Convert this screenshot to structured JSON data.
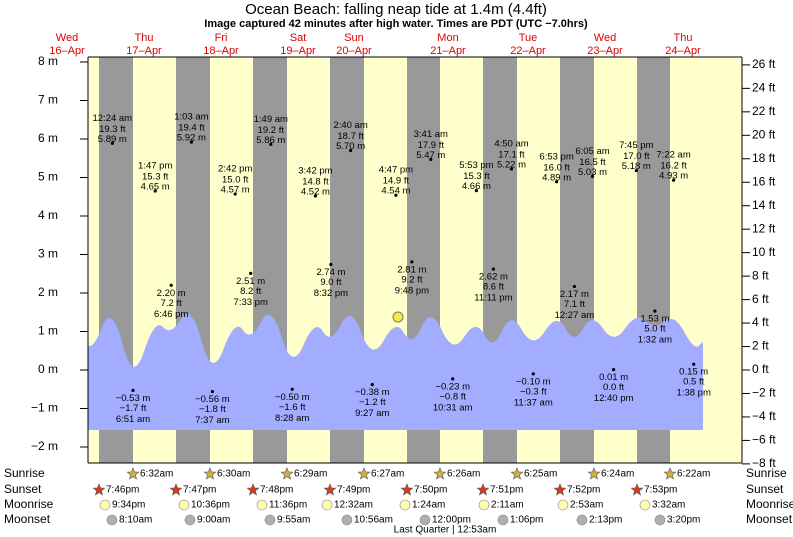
{
  "chart_data": {
    "type": "tide",
    "title": "Ocean Beach: falling  neap tide at 1.4m (4.4ft)",
    "subtitle": "Image captured 42 minutes after high water. Times are PDT (UTC −7.0hrs)",
    "days": [
      {
        "weekday": "Wed",
        "date": "16–Apr"
      },
      {
        "weekday": "Thu",
        "date": "17–Apr"
      },
      {
        "weekday": "Fri",
        "date": "18–Apr"
      },
      {
        "weekday": "Sat",
        "date": "19–Apr"
      },
      {
        "weekday": "Sun",
        "date": "20–Apr"
      },
      {
        "weekday": "Mon",
        "date": "21–Apr"
      },
      {
        "weekday": "Tue",
        "date": "22–Apr"
      },
      {
        "weekday": "Wed",
        "date": "23–Apr"
      },
      {
        "weekday": "Thu",
        "date": "24–Apr"
      }
    ],
    "ylim": [
      -2,
      8
    ],
    "yticks": [
      {
        "value": 8,
        "label": "8 m"
      },
      {
        "value": 7,
        "label": "7 m"
      },
      {
        "value": 6,
        "label": "6 m"
      },
      {
        "value": 5,
        "label": "5 m"
      },
      {
        "value": 4,
        "label": "4 m"
      },
      {
        "value": 3,
        "label": "3 m"
      },
      {
        "value": 2,
        "label": "2 m"
      },
      {
        "value": 1,
        "label": "1 m"
      },
      {
        "value": 0,
        "label": "0 m"
      },
      {
        "value": -1,
        "label": "−1 m"
      },
      {
        "value": -2,
        "label": "−2 m"
      }
    ],
    "y2ticks": [
      {
        "value": 26,
        "label": "26 ft"
      },
      {
        "value": 24,
        "label": "24 ft"
      },
      {
        "value": 22,
        "label": "22 ft"
      },
      {
        "value": 20,
        "label": "20 ft"
      },
      {
        "value": 18,
        "label": "18 ft"
      },
      {
        "value": 16,
        "label": "16 ft"
      },
      {
        "value": 14,
        "label": "14 ft"
      },
      {
        "value": 12,
        "label": "12 ft"
      },
      {
        "value": 10,
        "label": "10 ft"
      },
      {
        "value": 8,
        "label": "8 ft"
      },
      {
        "value": 6,
        "label": "6 ft"
      },
      {
        "value": 4,
        "label": "4 ft"
      },
      {
        "value": 2,
        "label": "2 ft"
      },
      {
        "value": 0,
        "label": "0 ft"
      },
      {
        "value": -2,
        "label": "−2 ft"
      },
      {
        "value": -4,
        "label": "−4 ft"
      },
      {
        "value": -6,
        "label": "−6 ft"
      },
      {
        "value": -8,
        "label": "−8 ft"
      }
    ],
    "tides": {
      "values": [
        5.89,
        -0.53,
        4.65,
        2.2,
        5.92,
        -0.56,
        4.57,
        2.51,
        5.86,
        -0.5,
        4.52,
        2.74,
        5.7,
        -0.38,
        4.54,
        2.81,
        5.47,
        -0.23,
        4.66,
        2.62,
        5.22,
        -0.1,
        4.89,
        2.17,
        5.03,
        0.01,
        5.18,
        1.53,
        4.93,
        0.15
      ],
      "value_labels": [
        "5.89 m",
        "−0.53 m",
        "4.65 m",
        "2.20 m",
        "5.92 m",
        "−0.56 m",
        "4.57 m",
        "2.51 m",
        "5.86 m",
        "−0.50 m",
        "4.52 m",
        "2.74 m",
        "5.70 m",
        "−0.38 m",
        "4.54 m",
        "2.81 m",
        "5.47 m",
        "−0.23 m",
        "4.66 m",
        "2.62 m",
        "5.22 m",
        "−0.10 m",
        "4.89 m",
        "2.17 m",
        "5.03 m",
        "0.01 m",
        "5.18 m",
        "1.53 m",
        "4.93 m",
        "0.15 m"
      ],
      "ft_labels": [
        "19.3 ft",
        "−1.7 ft",
        "15.3 ft",
        "7.2 ft",
        "19.4 ft",
        "−1.8 ft",
        "15.0 ft",
        "8.2 ft",
        "19.2 ft",
        "−1.6 ft",
        "14.8 ft",
        "9.0 ft",
        "18.7 ft",
        "−1.2 ft",
        "14.9 ft",
        "9.2 ft",
        "17.9 ft",
        "−0.8 ft",
        "15.3 ft",
        "8.6 ft",
        "17.1 ft",
        "−0.3 ft",
        "16.0 ft",
        "7.1 ft",
        "16.5 ft",
        "0.0 ft",
        "17.0 ft",
        "5.0 ft",
        "16.2 ft",
        "0.5 ft"
      ],
      "times": [
        "12:24 am",
        "6:51 am",
        "1:47 pm",
        "6:46 pm",
        "1:03 am",
        "7:37 am",
        "2:42 pm",
        "7:33 pm",
        "1:49 am",
        "8:28 am",
        "3:42 pm",
        "8:32 pm",
        "2:40 am",
        "9:27 am",
        "4:47 pm",
        "9:48 pm",
        "3:41 am",
        "10:31 am",
        "5:53 pm",
        "11:11 pm",
        "4:50 am",
        "11:37 am",
        "6:53 pm",
        "12:27 am",
        "6:05 am",
        "12:40 pm",
        "7:45 pm",
        "1:32 am",
        "7:22 am",
        "1:38 pm"
      ]
    },
    "sun_moon": [
      {
        "label": "Sunrise",
        "times": [
          "6:32am",
          "6:30am",
          "6:29am",
          "6:27am",
          "6:26am",
          "6:25am",
          "6:24am",
          "6:22am"
        ]
      },
      {
        "label": "Sunset",
        "times": [
          "7:46pm",
          "7:47pm",
          "7:48pm",
          "7:49pm",
          "7:50pm",
          "7:51pm",
          "7:52pm",
          "7:53pm"
        ]
      },
      {
        "label": "Moonrise",
        "times": [
          "9:34pm",
          "10:36pm",
          "11:36pm",
          "12:32am",
          "1:24am",
          "2:11am",
          "2:53am",
          "3:32am"
        ]
      },
      {
        "label": "Moonset",
        "times": [
          "8:10am",
          "9:00am",
          "9:55am",
          "10:56am",
          "12:00pm",
          "1:06pm",
          "2:13pm",
          "3:20pm"
        ]
      }
    ],
    "moon_phase": "Last Quarter | 12:53am"
  }
}
